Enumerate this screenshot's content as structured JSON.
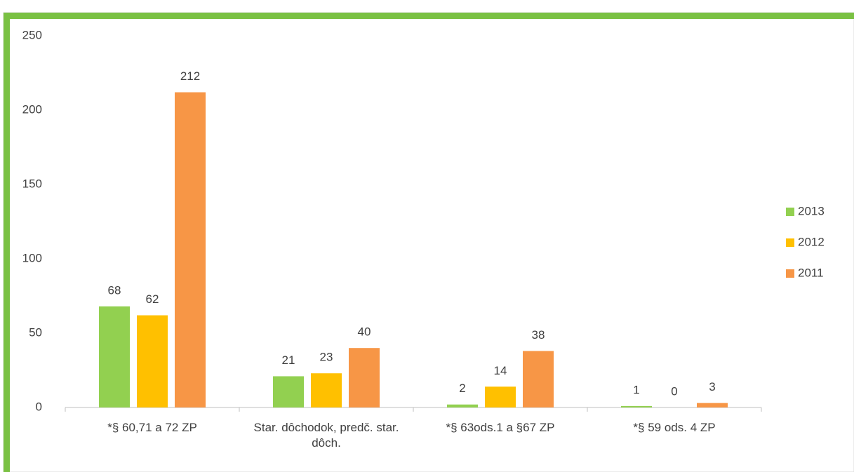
{
  "chart_data": {
    "type": "bar",
    "categories": [
      "*§ 60,71 a 72  ZP",
      "Star. dôchodok, predč. star. dôch.",
      "*§ 63ods.1 a §67 ZP",
      "*§ 59 ods. 4 ZP"
    ],
    "series": [
      {
        "name": "2013",
        "color": "#92d050",
        "values": [
          68,
          21,
          2,
          1
        ]
      },
      {
        "name": "2012",
        "color": "#ffc000",
        "values": [
          62,
          23,
          14,
          0
        ]
      },
      {
        "name": "2011",
        "color": "#f79646",
        "values": [
          212,
          40,
          38,
          3
        ]
      }
    ],
    "ylim": [
      0,
      250
    ],
    "yticks": [
      0,
      50,
      100,
      150,
      200,
      250
    ],
    "grid": false,
    "legend": "right"
  }
}
